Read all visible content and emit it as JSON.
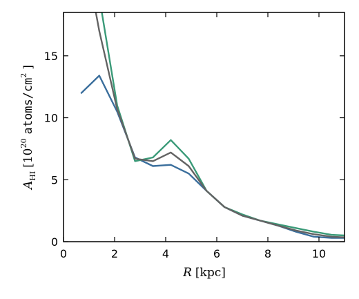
{
  "chart_data": {
    "type": "line",
    "title": "",
    "xlabel": {
      "var": "R",
      "unit": "[kpc]"
    },
    "ylabel": {
      "var": "A",
      "sub": "HI",
      "bracket_open": "[",
      "base": "10",
      "exp": "20",
      "unit": "atoms/cm",
      "unit_exp": "2",
      "bracket_close": "]"
    },
    "xlim": [
      0,
      11
    ],
    "ylim": [
      0,
      18.5
    ],
    "xticks": [
      0,
      2,
      4,
      6,
      8,
      10
    ],
    "yticks": [
      0,
      5,
      10,
      15
    ],
    "xtick_labels": [
      "0",
      "2",
      "4",
      "6",
      "8",
      "10"
    ],
    "ytick_labels": [
      "0",
      "5",
      "10",
      "15"
    ],
    "grid": false,
    "legend": "none",
    "series": [
      {
        "color": "#3a6e9c",
        "x": [
          0.7,
          1.4,
          2.1,
          2.8,
          3.5,
          4.2,
          4.9,
          5.6,
          6.3,
          7.0,
          7.7,
          8.4,
          9.1,
          9.8,
          10.5,
          11.0
        ],
        "y": [
          12.0,
          13.4,
          10.5,
          6.8,
          6.1,
          6.2,
          5.5,
          4.1,
          2.8,
          2.1,
          1.7,
          1.3,
          0.8,
          0.4,
          0.3,
          0.3
        ]
      },
      {
        "color": "#3a9a78",
        "x": [
          1.0,
          1.5,
          2.1,
          2.8,
          3.5,
          4.2,
          4.9,
          5.6,
          6.3,
          7.0,
          7.7,
          8.4,
          9.1,
          9.8,
          10.5,
          11.0
        ],
        "y": [
          25.0,
          18.5,
          11.0,
          6.5,
          6.8,
          8.2,
          6.7,
          4.1,
          2.8,
          2.2,
          1.7,
          1.4,
          1.1,
          0.8,
          0.55,
          0.5
        ]
      },
      {
        "color": "#636363",
        "x": [
          0.95,
          1.4,
          2.1,
          2.8,
          3.5,
          4.2,
          4.9,
          5.6,
          6.3,
          7.0,
          7.7,
          8.4,
          9.1,
          9.8,
          10.5,
          11.0
        ],
        "y": [
          22.0,
          17.0,
          10.7,
          6.7,
          6.5,
          7.2,
          6.1,
          4.1,
          2.8,
          2.1,
          1.7,
          1.3,
          0.9,
          0.6,
          0.4,
          0.35
        ]
      }
    ]
  }
}
